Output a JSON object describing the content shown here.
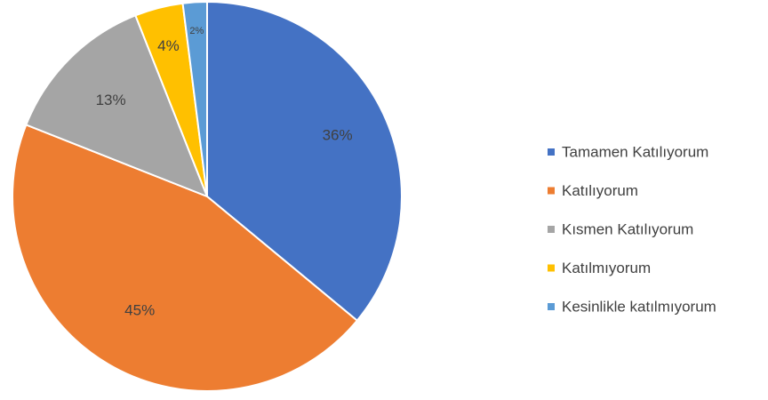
{
  "chart_data": {
    "type": "pie",
    "title": "",
    "categories": [
      "Tamamen Katılıyorum",
      "Katılıyorum",
      "Kısmen Katılıyorum",
      "Katılmıyorum",
      "Kesinlikle katılmıyorum"
    ],
    "values": [
      36,
      45,
      13,
      4,
      2
    ],
    "labels": [
      "36%",
      "45%",
      "13%",
      "4%",
      "2%"
    ],
    "colors": [
      "#4472C4",
      "#ED7D31",
      "#A5A5A5",
      "#FFC000",
      "#5B9BD5"
    ],
    "start_angle_deg": 0,
    "direction": "clockwise",
    "legend_position": "right"
  }
}
